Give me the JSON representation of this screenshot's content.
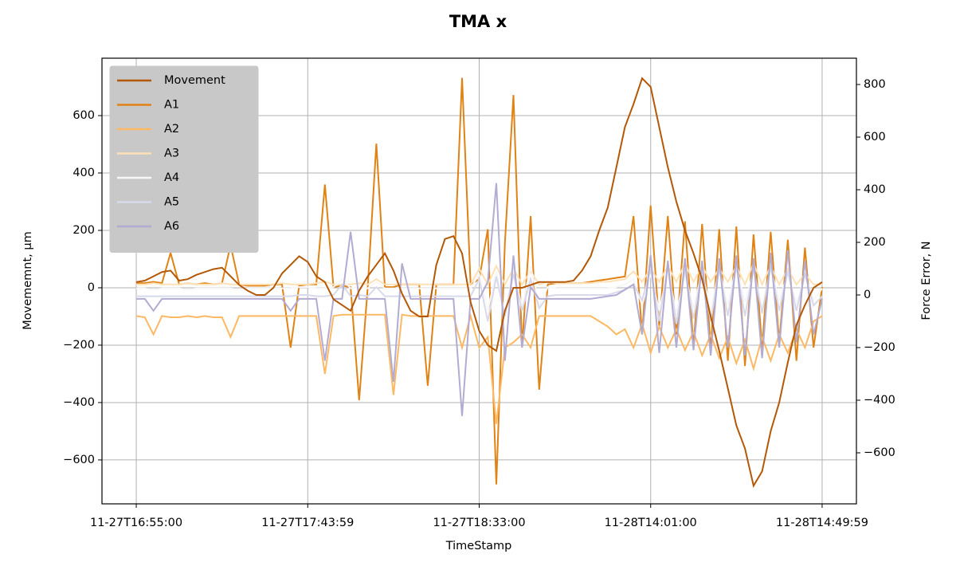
{
  "chart_data": {
    "type": "line",
    "title": "TMA x",
    "xlabel": "TimeStamp",
    "ylabel": "Movememnt, μm",
    "y2label": "Force Error, N",
    "x": [
      0,
      5,
      10,
      15,
      20,
      25,
      30,
      35,
      40,
      45,
      50,
      55,
      60,
      65,
      70,
      75,
      80,
      85,
      90,
      95,
      100,
      105,
      110,
      115,
      120,
      125,
      130,
      135,
      140,
      145,
      150,
      155,
      160,
      165,
      170,
      175,
      180,
      185,
      190,
      195,
      200,
      205,
      210,
      215,
      220,
      225,
      230,
      235,
      240,
      245,
      250,
      255,
      260,
      265,
      270,
      275,
      280,
      285,
      290,
      295,
      300,
      305,
      310,
      315,
      320,
      325,
      330,
      335,
      340,
      345,
      350,
      355,
      360,
      365,
      370,
      375,
      380,
      385,
      390,
      395,
      400
    ],
    "xlim": [
      -20,
      420
    ],
    "xticks": [
      {
        "value": 0,
        "label": "11-27T16:55:00"
      },
      {
        "value": 100,
        "label": "11-27T17:43:59"
      },
      {
        "value": 200,
        "label": "11-27T18:33:00"
      },
      {
        "value": 300,
        "label": "11-28T14:01:00"
      },
      {
        "value": 400,
        "label": "11-28T14:49:59"
      }
    ],
    "ylim": [
      -753,
      800
    ],
    "yticks": [
      {
        "value": -600,
        "label": "−600"
      },
      {
        "value": -400,
        "label": "−400"
      },
      {
        "value": -200,
        "label": "−200"
      },
      0,
      200,
      400,
      600
    ],
    "y2lim": [
      -794,
      900
    ],
    "y2ticks": [
      {
        "value": -600,
        "label": "−600"
      },
      {
        "value": -400,
        "label": "−400"
      },
      {
        "value": -200,
        "label": "−200"
      },
      0,
      200,
      400,
      600,
      800
    ],
    "grid": true,
    "legend": "upper left",
    "series": [
      {
        "name": "Movement",
        "color": "#b35806",
        "axis": "y",
        "values": [
          20,
          25,
          40,
          55,
          60,
          25,
          30,
          45,
          55,
          65,
          70,
          40,
          10,
          -10,
          -25,
          -25,
          0,
          50,
          80,
          110,
          90,
          40,
          20,
          -40,
          -60,
          -80,
          -10,
          40,
          80,
          120,
          60,
          -20,
          -80,
          -100,
          -100,
          80,
          170,
          180,
          120,
          -50,
          -150,
          -200,
          -220,
          -80,
          0,
          0,
          10,
          20,
          20,
          20,
          20,
          25,
          60,
          110,
          200,
          280,
          420,
          560,
          640,
          730,
          700,
          560,
          420,
          300,
          200,
          120,
          30,
          -100,
          -220,
          -350,
          -480,
          -560,
          -690,
          -640,
          -500,
          -400,
          -260,
          -130,
          -60,
          0,
          20
        ]
      },
      {
        "name": "A1",
        "color": "#e08214",
        "axis": "y2",
        "values": [
          45,
          45,
          50,
          45,
          160,
          40,
          45,
          40,
          45,
          40,
          45,
          190,
          40,
          35,
          35,
          35,
          40,
          40,
          -200,
          35,
          40,
          40,
          420,
          30,
          35,
          30,
          -400,
          30,
          575,
          30,
          30,
          40,
          40,
          40,
          -345,
          40,
          40,
          40,
          825,
          40,
          60,
          250,
          -720,
          200,
          760,
          -200,
          300,
          -360,
          40,
          45,
          45,
          45,
          45,
          50,
          55,
          60,
          65,
          70,
          300,
          -150,
          340,
          -120,
          300,
          -150,
          280,
          -200,
          270,
          -200,
          250,
          -250,
          260,
          -270,
          230,
          -200,
          240,
          -180,
          210,
          -250,
          180,
          -200,
          30
        ]
      },
      {
        "name": "A2",
        "color": "#fdb863",
        "axis": "y2",
        "values": [
          -80,
          -85,
          -150,
          -80,
          -85,
          -85,
          -80,
          -85,
          -80,
          -85,
          -85,
          -160,
          -80,
          -80,
          -80,
          -80,
          -80,
          -80,
          -80,
          -80,
          -80,
          -80,
          -300,
          -80,
          -75,
          -75,
          -75,
          -75,
          -75,
          -75,
          -380,
          -75,
          -80,
          -80,
          -80,
          -80,
          -80,
          -80,
          -200,
          -80,
          -200,
          -160,
          -490,
          -200,
          -180,
          -150,
          -200,
          -80,
          -80,
          -80,
          -80,
          -80,
          -80,
          -80,
          -100,
          -120,
          -150,
          -130,
          -200,
          -110,
          -220,
          -120,
          -200,
          -130,
          -210,
          -140,
          -230,
          -150,
          -240,
          -160,
          -260,
          -170,
          -280,
          -160,
          -250,
          -150,
          -220,
          -130,
          -200,
          -100,
          -80
        ]
      },
      {
        "name": "A3",
        "color": "#fee0b6",
        "axis": "y2",
        "values": [
          40,
          40,
          45,
          40,
          40,
          40,
          45,
          40,
          40,
          40,
          45,
          40,
          40,
          40,
          40,
          40,
          40,
          45,
          40,
          40,
          40,
          45,
          50,
          40,
          40,
          40,
          45,
          40,
          60,
          40,
          40,
          40,
          40,
          40,
          40,
          40,
          40,
          40,
          40,
          40,
          100,
          40,
          110,
          40,
          100,
          40,
          90,
          40,
          50,
          45,
          45,
          45,
          45,
          45,
          50,
          50,
          55,
          60,
          90,
          50,
          100,
          50,
          110,
          50,
          120,
          50,
          110,
          50,
          100,
          50,
          110,
          40,
          120,
          40,
          110,
          40,
          100,
          40,
          80,
          40,
          40
        ]
      },
      {
        "name": "A4",
        "color": "#f7f7f7",
        "axis": "y2",
        "values": [
          25,
          25,
          20,
          25,
          25,
          25,
          20,
          25,
          25,
          25,
          25,
          25,
          20,
          25,
          25,
          25,
          25,
          25,
          25,
          30,
          30,
          25,
          25,
          30,
          60,
          25,
          30,
          25,
          50,
          25,
          25,
          25,
          25,
          25,
          25,
          25,
          25,
          25,
          25,
          25,
          80,
          -60,
          90,
          -80,
          100,
          -50,
          110,
          -40,
          30,
          25,
          25,
          25,
          25,
          25,
          25,
          25,
          30,
          40,
          60,
          -40,
          80,
          -60,
          90,
          -70,
          80,
          -50,
          90,
          -60,
          100,
          -40,
          110,
          -30,
          90,
          -50,
          100,
          -20,
          80,
          -30,
          70,
          -20,
          25
        ]
      },
      {
        "name": "A5",
        "color": "#d8daeb",
        "axis": "y2",
        "values": [
          -5,
          -5,
          -5,
          -5,
          -5,
          -5,
          -5,
          -5,
          -5,
          -5,
          -5,
          -5,
          -5,
          -5,
          -5,
          -5,
          -5,
          -5,
          -5,
          0,
          0,
          -5,
          -5,
          0,
          40,
          -5,
          0,
          -5,
          30,
          -5,
          -5,
          -5,
          -5,
          -5,
          -5,
          -5,
          -5,
          -5,
          -5,
          -5,
          60,
          -100,
          70,
          -80,
          80,
          -60,
          60,
          -50,
          -5,
          0,
          0,
          0,
          0,
          0,
          0,
          0,
          10,
          20,
          40,
          -20,
          100,
          -100,
          110,
          -110,
          100,
          -90,
          90,
          -100,
          100,
          -80,
          110,
          -80,
          100,
          -70,
          110,
          -60,
          90,
          -60,
          80,
          -40,
          -5
        ]
      },
      {
        "name": "A6",
        "color": "#b2abd2",
        "axis": "y2",
        "values": [
          -15,
          -15,
          -60,
          -15,
          -15,
          -15,
          -15,
          -15,
          -15,
          -15,
          -15,
          -15,
          -15,
          -15,
          -15,
          -15,
          -15,
          -15,
          -60,
          -15,
          -15,
          -15,
          -250,
          -15,
          -15,
          240,
          -15,
          -15,
          -15,
          -15,
          -330,
          120,
          -15,
          -15,
          -15,
          -15,
          -15,
          -15,
          -460,
          -15,
          -15,
          50,
          425,
          -250,
          150,
          -200,
          30,
          -15,
          -15,
          -15,
          -15,
          -15,
          -15,
          -15,
          -10,
          -5,
          0,
          20,
          40,
          -150,
          150,
          -220,
          130,
          -200,
          140,
          -210,
          130,
          -230,
          140,
          -200,
          150,
          -230,
          140,
          -240,
          160,
          -200,
          170,
          -180,
          130,
          -150,
          -15
        ]
      }
    ]
  }
}
